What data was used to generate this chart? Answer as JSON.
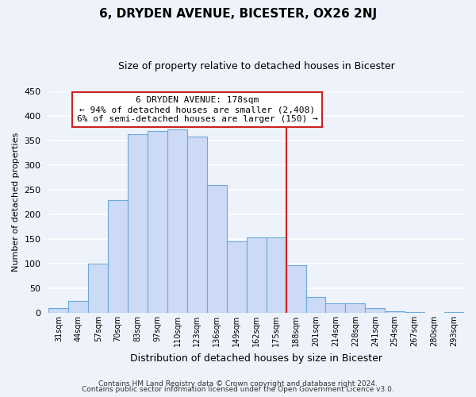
{
  "title": "6, DRYDEN AVENUE, BICESTER, OX26 2NJ",
  "subtitle": "Size of property relative to detached houses in Bicester",
  "xlabel": "Distribution of detached houses by size in Bicester",
  "ylabel": "Number of detached properties",
  "bar_labels": [
    "31sqm",
    "44sqm",
    "57sqm",
    "70sqm",
    "83sqm",
    "97sqm",
    "110sqm",
    "123sqm",
    "136sqm",
    "149sqm",
    "162sqm",
    "175sqm",
    "188sqm",
    "201sqm",
    "214sqm",
    "228sqm",
    "241sqm",
    "254sqm",
    "267sqm",
    "280sqm",
    "293sqm"
  ],
  "bar_heights": [
    10,
    25,
    100,
    230,
    363,
    370,
    373,
    358,
    260,
    146,
    153,
    153,
    97,
    32,
    20,
    20,
    9,
    4,
    2,
    0,
    2
  ],
  "bar_color": "#ccdaf5",
  "bar_edge_color": "#6baad8",
  "vline_x_index": 11,
  "annotation_title": "6 DRYDEN AVENUE: 178sqm",
  "annotation_line1": "← 94% of detached houses are smaller (2,408)",
  "annotation_line2": "6% of semi-detached houses are larger (150) →",
  "ylim": [
    0,
    450
  ],
  "yticks": [
    0,
    50,
    100,
    150,
    200,
    250,
    300,
    350,
    400,
    450
  ],
  "footer1": "Contains HM Land Registry data © Crown copyright and database right 2024.",
  "footer2": "Contains public sector information licensed under the Open Government Licence v3.0.",
  "bg_color": "#eef2fa",
  "grid_color": "#ffffff",
  "annotation_box_color": "#ffffff",
  "annotation_box_edge": "#cc2222",
  "vline_color": "#cc2222",
  "title_fontsize": 11,
  "subtitle_fontsize": 9
}
